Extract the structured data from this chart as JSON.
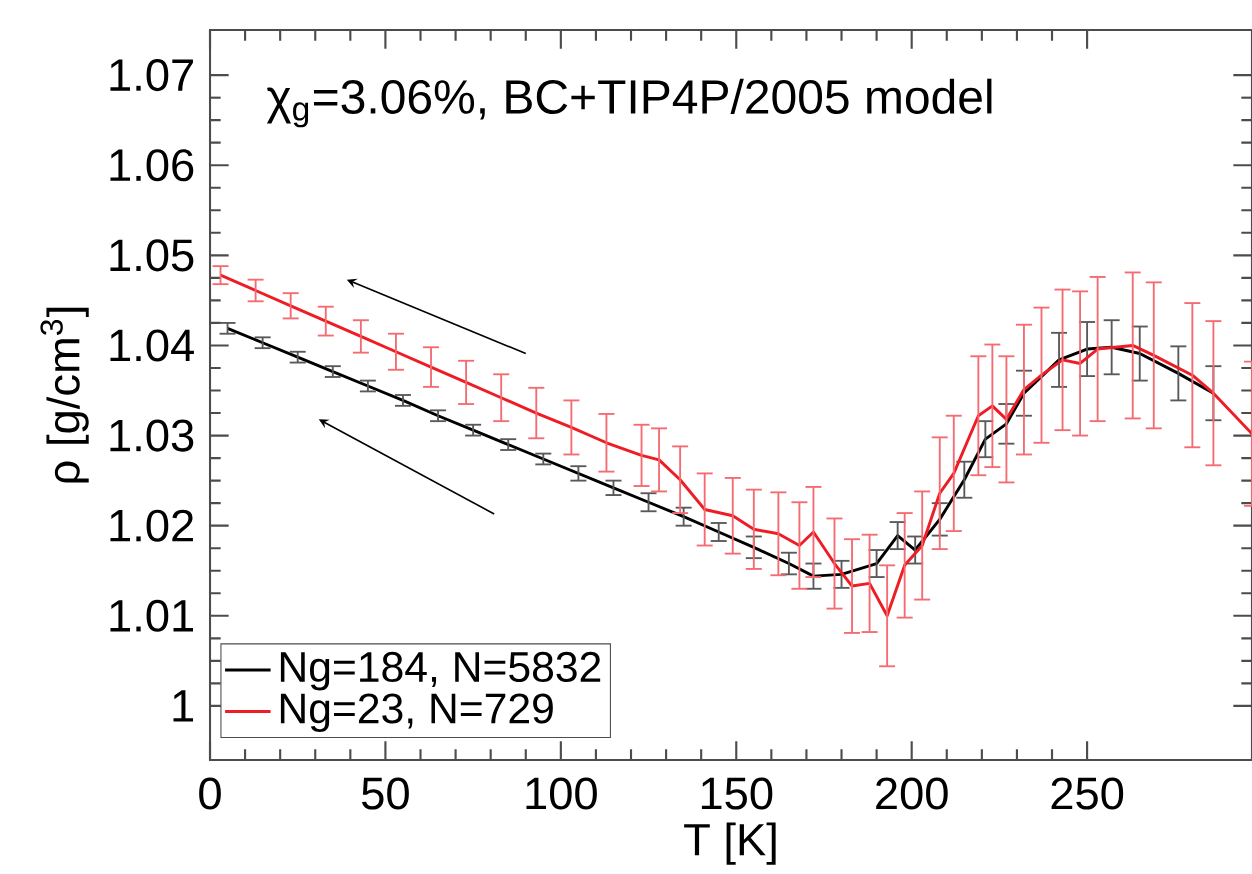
{
  "chart_data": {
    "type": "line",
    "xlabel": "T [K]",
    "ylabel": "ρ [g/cm$^{3}$]",
    "annotations": [
      "χ$_{g}$=3.06%, BC+TIP4P/2005 model"
    ],
    "xlim": [
      0,
      297
    ],
    "ylim": [
      0.994,
      1.075
    ],
    "xticks": [
      0,
      50,
      100,
      150,
      200,
      250
    ],
    "yticks": [
      1,
      1.01,
      1.02,
      1.03,
      1.04,
      1.05,
      1.06,
      1.07
    ],
    "legend": "bottom left",
    "marker": "none",
    "line_style": "solid",
    "series": [
      {
        "name": "Ng=184, N=5832",
        "color": "#000000",
        "x": [
          5,
          15,
          25,
          35,
          45,
          55,
          65,
          75,
          85,
          95,
          105,
          115,
          125,
          135,
          145,
          155,
          165,
          172,
          180,
          190,
          196,
          201,
          208,
          215,
          221,
          227,
          232,
          242,
          250,
          257,
          265,
          276,
          286
        ],
        "values": [
          1.0419,
          1.0403,
          1.0387,
          1.0371,
          1.0355,
          1.0339,
          1.0322,
          1.0306,
          1.029,
          1.0274,
          1.0258,
          1.0242,
          1.0226,
          1.021,
          1.0193,
          1.0176,
          1.0158,
          1.0144,
          1.0146,
          1.0158,
          1.0189,
          1.0173,
          1.0207,
          1.0251,
          1.0296,
          1.0313,
          1.0347,
          1.0384,
          1.0396,
          1.0398,
          1.0391,
          1.0369,
          1.0347
        ],
        "errors": [
          0.0006,
          0.0006,
          0.0006,
          0.0006,
          0.0006,
          0.0006,
          0.0006,
          0.0006,
          0.0006,
          0.0006,
          0.0008,
          0.0008,
          0.001,
          0.001,
          0.001,
          0.0012,
          0.0012,
          0.0014,
          0.0015,
          0.0015,
          0.0015,
          0.0015,
          0.0018,
          0.002,
          0.002,
          0.0022,
          0.0025,
          0.003,
          0.003,
          0.003,
          0.003,
          0.003,
          0.003
        ]
      },
      {
        "name": "Ng=23, N=729",
        "color": "#ee1c24",
        "x": [
          3,
          13,
          23,
          33,
          43,
          53,
          63,
          73,
          83,
          93,
          103,
          113,
          123,
          128,
          134,
          141,
          149,
          155,
          162,
          168,
          172,
          178,
          183,
          188,
          193,
          198,
          203,
          208,
          212,
          219,
          223,
          227,
          232,
          237,
          243,
          248,
          253,
          263,
          269,
          280,
          286,
          297
        ],
        "values": [
          1.0478,
          1.0461,
          1.0444,
          1.0427,
          1.041,
          1.0393,
          1.0376,
          1.0359,
          1.0342,
          1.0325,
          1.0309,
          1.0292,
          1.0278,
          1.0273,
          1.0251,
          1.0218,
          1.0211,
          1.0196,
          1.0191,
          1.0178,
          1.0193,
          1.0158,
          1.0133,
          1.0136,
          1.01,
          1.0156,
          1.0178,
          1.0236,
          1.0258,
          1.0322,
          1.0333,
          1.0318,
          1.0351,
          1.0367,
          1.0384,
          1.038,
          1.0396,
          1.04,
          1.0389,
          1.0367,
          1.0347,
          1.0302
        ],
        "errors": [
          0.001,
          0.0012,
          0.0014,
          0.0016,
          0.0018,
          0.002,
          0.0022,
          0.0024,
          0.0026,
          0.0028,
          0.003,
          0.0032,
          0.0034,
          0.0035,
          0.0037,
          0.004,
          0.0042,
          0.0044,
          0.0046,
          0.0048,
          0.005,
          0.005,
          0.0052,
          0.0054,
          0.0056,
          0.0058,
          0.006,
          0.0062,
          0.0064,
          0.0066,
          0.0068,
          0.007,
          0.0072,
          0.0075,
          0.0078,
          0.008,
          0.008,
          0.0081,
          0.0081,
          0.008,
          0.008,
          0.008
        ]
      }
    ]
  }
}
